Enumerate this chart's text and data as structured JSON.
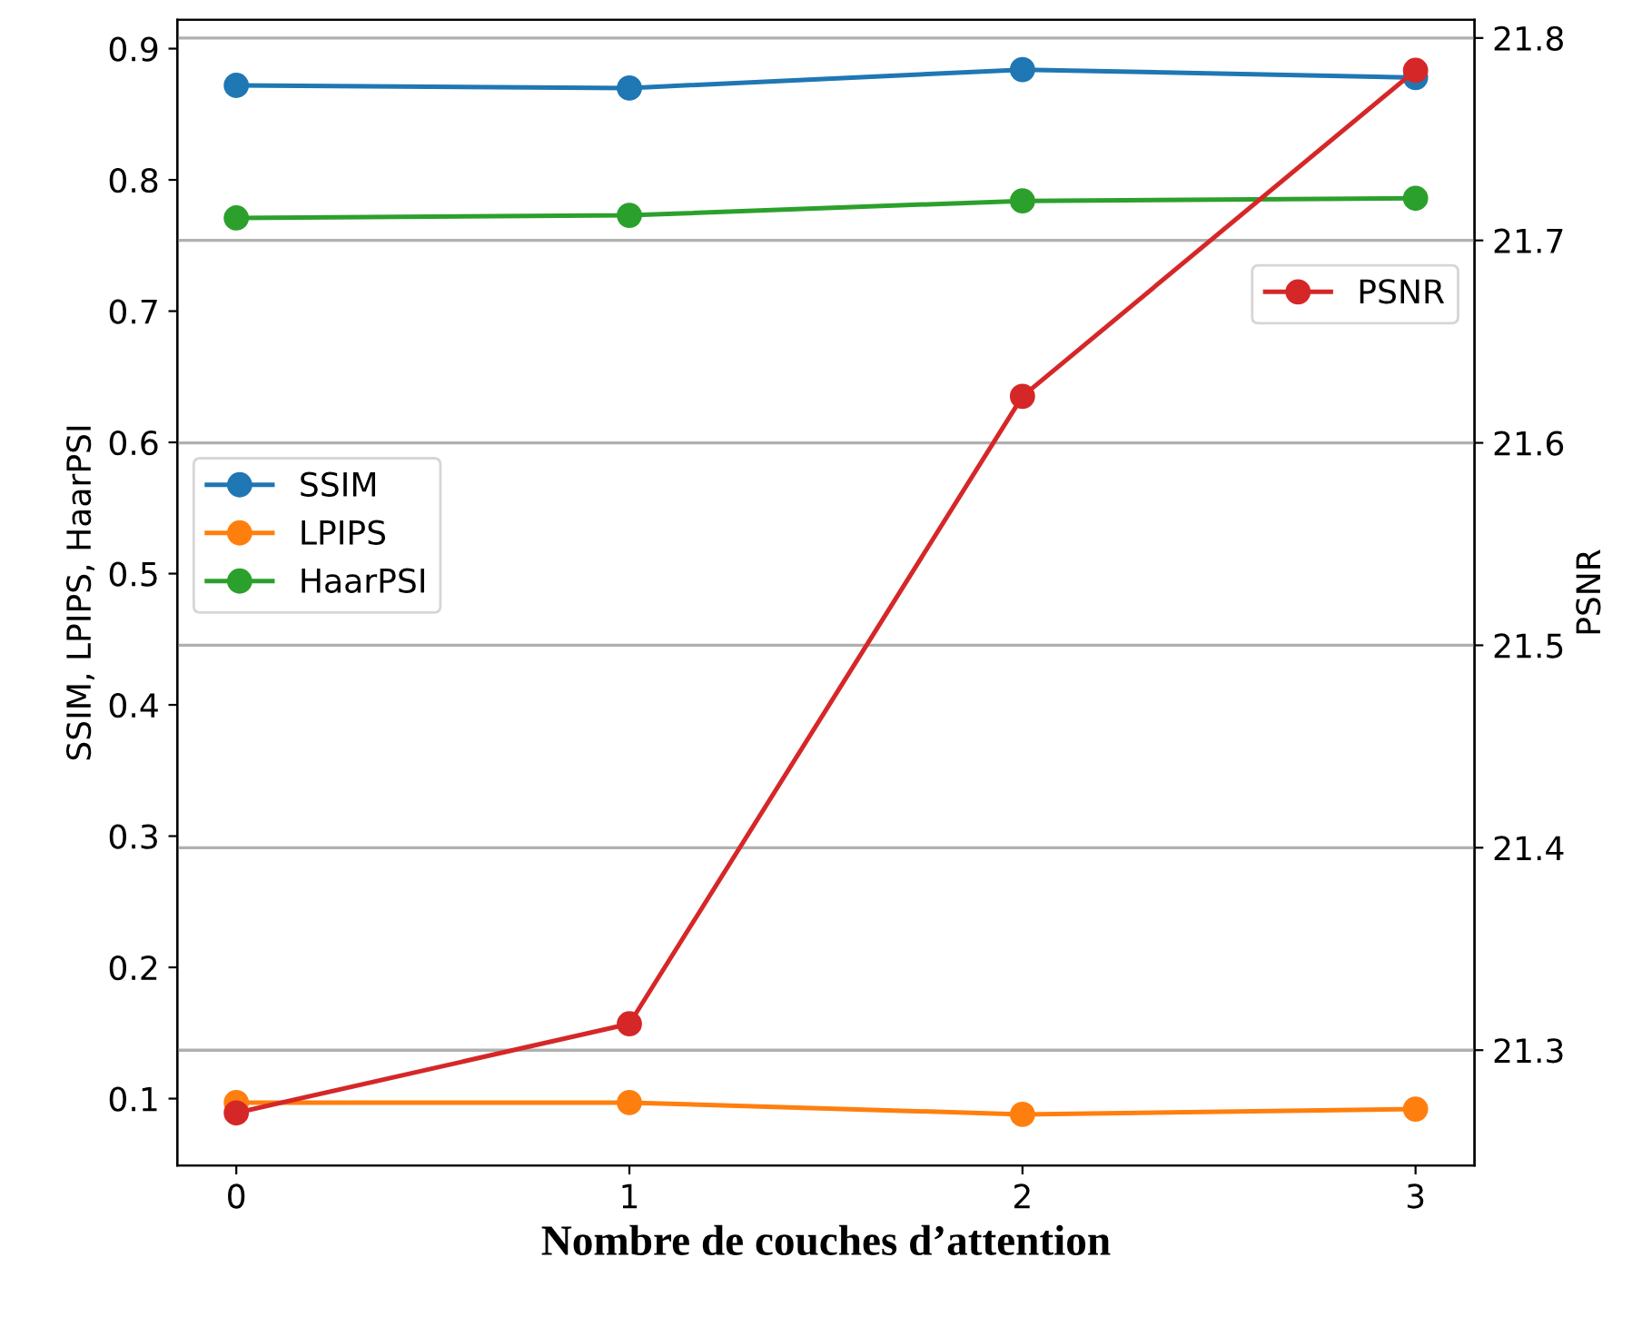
{
  "chart_data": {
    "type": "line",
    "xlabel": "Nombre de couches d’attention",
    "ylabel": "SSIM, LPIPS, HaarPSI",
    "y2label": "PSNR",
    "x": [
      0,
      1,
      2,
      3
    ],
    "xlim": [
      -0.15,
      3.15
    ],
    "xticks": [
      0,
      1,
      2,
      3
    ],
    "ylim": [
      0.049,
      0.922
    ],
    "yticks": [
      0.1,
      0.2,
      0.3,
      0.4,
      0.5,
      0.6,
      0.7,
      0.8,
      0.9
    ],
    "y2lim": [
      21.243,
      21.809
    ],
    "y2ticks": [
      21.3,
      21.4,
      21.5,
      21.6,
      21.7,
      21.8
    ],
    "grid": "y2",
    "legend": "center left",
    "marker": "circle",
    "line_style": "solid",
    "series": [
      {
        "name": "SSIM",
        "color": "#1f77b4",
        "values": [
          0.872,
          0.87,
          0.884,
          0.878
        ]
      },
      {
        "name": "LPIPS",
        "color": "#ff7f0e",
        "values": [
          0.097,
          0.097,
          0.088,
          0.092
        ]
      },
      {
        "name": "HaarPSI",
        "color": "#2ca02c",
        "values": [
          0.771,
          0.773,
          0.784,
          0.786
        ]
      },
      {
        "name": "PSNR",
        "color": "#d62728",
        "axis": "y2",
        "values": [
          21.269,
          21.313,
          21.623,
          21.784
        ]
      }
    ]
  }
}
